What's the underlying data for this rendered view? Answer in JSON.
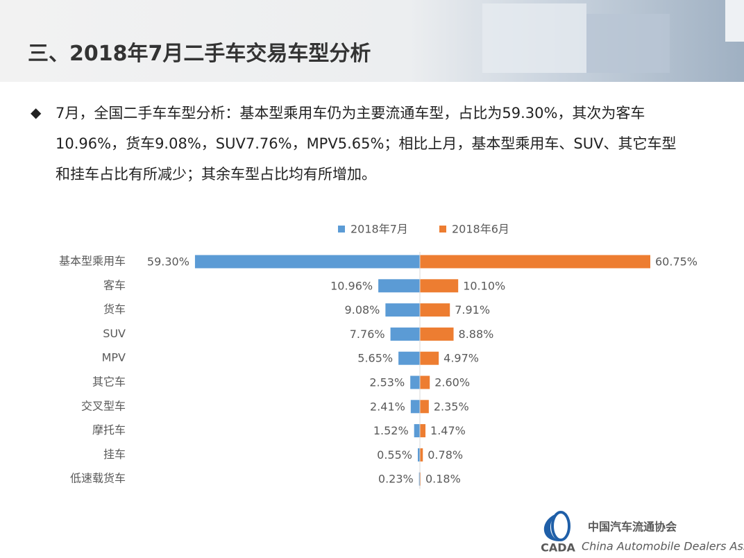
{
  "header": {
    "title": "三、2018年7月二手车交易车型分析"
  },
  "bullet": {
    "text": "7月，全国二手车车型分析：基本型乘用车仍为主要流通车型，占比为59.30%，其次为客车10.96%，货车9.08%，SUV7.76%，MPV5.65%；相比上月，基本型乘用车、SUV、其它车型和挂车占比有所减少；其余车型占比均有所增加。"
  },
  "chart_data": {
    "type": "butterfly",
    "categories": [
      "基本型乘用车",
      "客车",
      "货车",
      "SUV",
      "MPV",
      "其它车",
      "交叉型车",
      "摩托车",
      "挂车",
      "低速载货车"
    ],
    "series": [
      {
        "name": "2018年7月",
        "color": "#5b9bd5",
        "values": [
          59.3,
          10.96,
          9.08,
          7.76,
          5.65,
          2.53,
          2.41,
          1.52,
          0.55,
          0.23
        ],
        "value_labels": [
          "59.30%",
          "10.96%",
          "9.08%",
          "7.76%",
          "5.65%",
          "2.53%",
          "2.41%",
          "1.52%",
          "0.55%",
          "0.23%"
        ]
      },
      {
        "name": "2018年6月",
        "color": "#ed7d31",
        "values": [
          60.75,
          10.1,
          7.91,
          8.88,
          4.97,
          2.6,
          2.35,
          1.47,
          0.78,
          0.18
        ],
        "value_labels": [
          "60.75%",
          "10.10%",
          "7.91%",
          "8.88%",
          "4.97%",
          "2.60%",
          "2.35%",
          "1.47%",
          "0.78%",
          "0.18%"
        ]
      }
    ],
    "legend": "top"
  },
  "logo": {
    "short": "CADA",
    "name": "中国汽车流通协会",
    "english": "China Automobile Dealers Association"
  }
}
